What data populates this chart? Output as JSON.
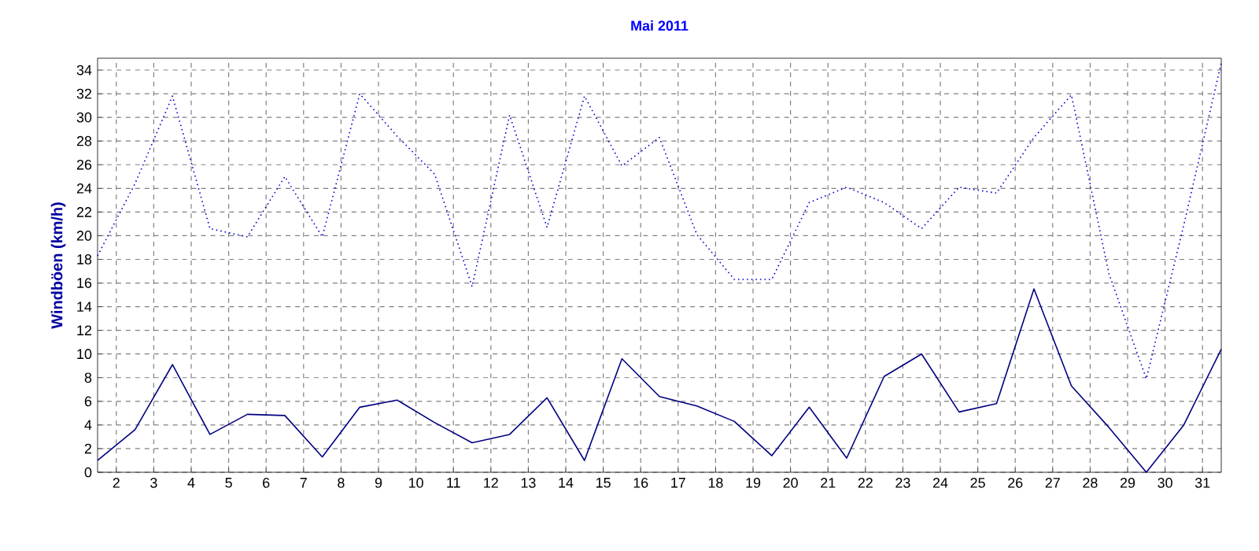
{
  "chart_data": {
    "type": "line",
    "title": "Mai 2011",
    "ylabel": "Windböen  (km/h)",
    "x": [
      1.5,
      2.5,
      3.5,
      4.5,
      5.5,
      6.5,
      7.5,
      8.5,
      9.5,
      10.5,
      11.5,
      12.5,
      13.5,
      14.5,
      15.5,
      16.5,
      17.5,
      18.5,
      19.5,
      20.5,
      21.5,
      22.5,
      23.5,
      24.5,
      25.5,
      26.5,
      27.5,
      28.5,
      29.5,
      30.5,
      31.5
    ],
    "series": [
      {
        "color": "#0000cc",
        "line_style": "dotted",
        "values": [
          18.3,
          24.4,
          31.8,
          20.6,
          19.9,
          25.0,
          19.9,
          32.0,
          28.4,
          25.2,
          15.7,
          30.2,
          20.7,
          31.8,
          25.9,
          28.3,
          20.1,
          16.3,
          16.3,
          22.8,
          24.1,
          22.8,
          20.6,
          24.1,
          23.6,
          28.3,
          31.9,
          16.8,
          7.9,
          20.9,
          34.6
        ]
      },
      {
        "color": "#000080",
        "line_style": "solid",
        "values": [
          1.0,
          3.6,
          9.1,
          3.2,
          4.9,
          4.8,
          1.3,
          5.5,
          6.1,
          4.2,
          2.5,
          3.2,
          6.3,
          1.0,
          9.6,
          6.4,
          5.6,
          4.3,
          1.4,
          5.5,
          1.2,
          8.1,
          10.0,
          5.1,
          5.8,
          15.5,
          7.3,
          3.8,
          0.0,
          4.0,
          10.4
        ]
      }
    ],
    "xlim": [
      1.5,
      31.5
    ],
    "ylim": [
      0,
      35
    ],
    "xticks": [
      2,
      3,
      4,
      5,
      6,
      7,
      8,
      9,
      10,
      11,
      12,
      13,
      14,
      15,
      16,
      17,
      18,
      19,
      20,
      21,
      22,
      23,
      24,
      25,
      26,
      27,
      28,
      29,
      30,
      31
    ],
    "yticks": [
      0,
      2,
      4,
      6,
      8,
      10,
      12,
      14,
      16,
      18,
      20,
      22,
      24,
      26,
      28,
      30,
      32,
      34
    ],
    "grid": true
  }
}
